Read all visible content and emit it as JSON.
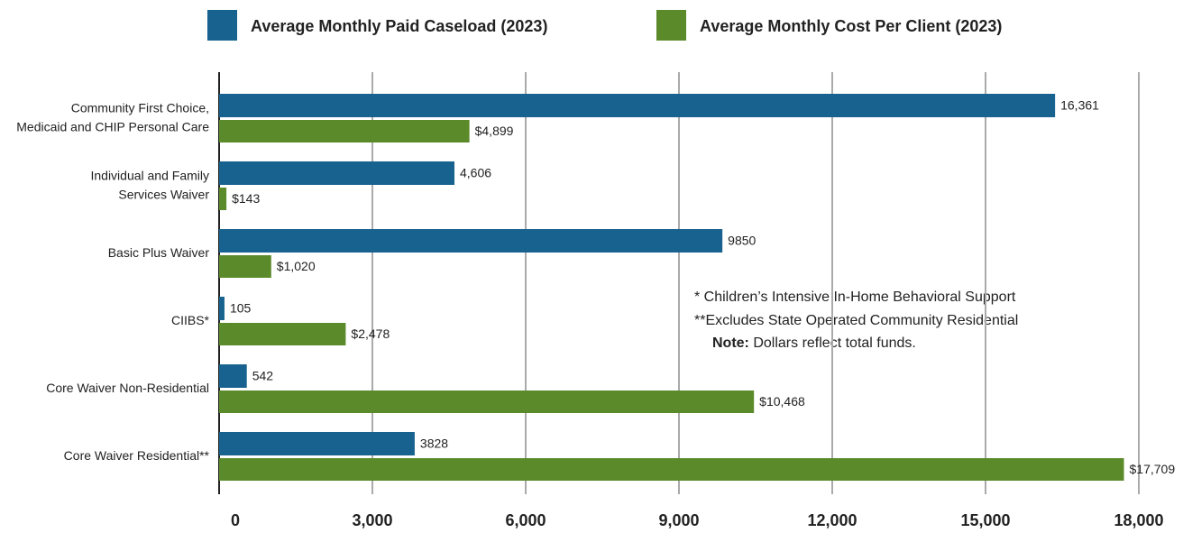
{
  "chart_data": {
    "type": "bar",
    "orientation": "horizontal",
    "categories": [
      "Community First Choice,\nMedicaid and CHIP Personal Care",
      "Individual and Family\nServices Waiver",
      "Basic Plus Waiver",
      "CIIBS*",
      "Core Waiver Non-Residential",
      "Core Waiver Residential**"
    ],
    "series": [
      {
        "name": "Average Monthly Paid Caseload (2023)",
        "color": "#17628f",
        "values": [
          16361,
          4606,
          9850,
          105,
          542,
          3828
        ],
        "value_labels": [
          "16,361",
          "4,606",
          "9850",
          "105",
          "542",
          "3828"
        ]
      },
      {
        "name": "Average Monthly Cost Per Client (2023)",
        "color": "#5b8a2b",
        "values": [
          4899,
          143,
          1020,
          2478,
          10468,
          17709
        ],
        "value_labels": [
          "$4,899",
          "$143",
          "$1,020",
          "$2,478",
          "$10,468",
          "$17,709"
        ]
      }
    ],
    "xlim": [
      0,
      18000
    ],
    "xticks": [
      0,
      {
        "value": 3000,
        "label": "3,000"
      },
      {
        "value": 6000,
        "label": "6,000"
      },
      {
        "value": 9000,
        "label": "9,000"
      },
      {
        "value": 12000,
        "label": "12,000"
      },
      {
        "value": 15000,
        "label": "15,000"
      },
      {
        "value": 18000,
        "label": "18,000"
      }
    ],
    "grid": true,
    "legend": "top",
    "notes": [
      "* Children’s Intensive In-Home Behavioral Support",
      "**Excludes State Operated Community Residential"
    ],
    "note": {
      "label": "Note:",
      "text": "Dollars reflect total funds."
    }
  }
}
